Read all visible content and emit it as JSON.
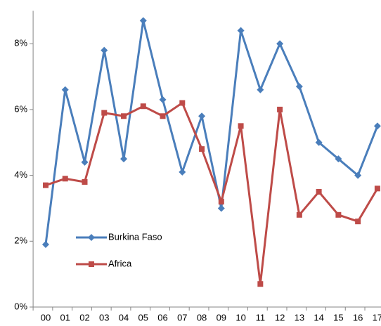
{
  "chart_data": {
    "type": "line",
    "categories": [
      "00",
      "01",
      "02",
      "03",
      "04",
      "05",
      "06",
      "07",
      "08",
      "09",
      "10",
      "11",
      "12",
      "13",
      "14",
      "15",
      "16",
      "17"
    ],
    "series": [
      {
        "name": "Burkina Faso",
        "color": "#4a7ebb",
        "marker": "diamond",
        "values": [
          1.9,
          6.6,
          4.4,
          7.8,
          4.5,
          8.7,
          6.3,
          4.1,
          5.8,
          3.0,
          8.4,
          6.6,
          8.0,
          6.7,
          5.0,
          4.5,
          4.0,
          5.5
        ]
      },
      {
        "name": "Africa",
        "color": "#be4b48",
        "marker": "square",
        "values": [
          3.7,
          3.9,
          3.8,
          5.9,
          5.8,
          6.1,
          5.8,
          6.2,
          4.8,
          3.2,
          5.5,
          0.7,
          6.0,
          2.8,
          3.5,
          2.8,
          2.6,
          3.6
        ]
      }
    ],
    "ylim": [
      0,
      9
    ],
    "yticks": [
      {
        "value": 0,
        "label": "0%"
      },
      {
        "value": 2,
        "label": "2%"
      },
      {
        "value": 4,
        "label": "4%"
      },
      {
        "value": 6,
        "label": "6%"
      },
      {
        "value": 8,
        "label": "8%"
      }
    ],
    "grid": false,
    "legend": "left"
  }
}
